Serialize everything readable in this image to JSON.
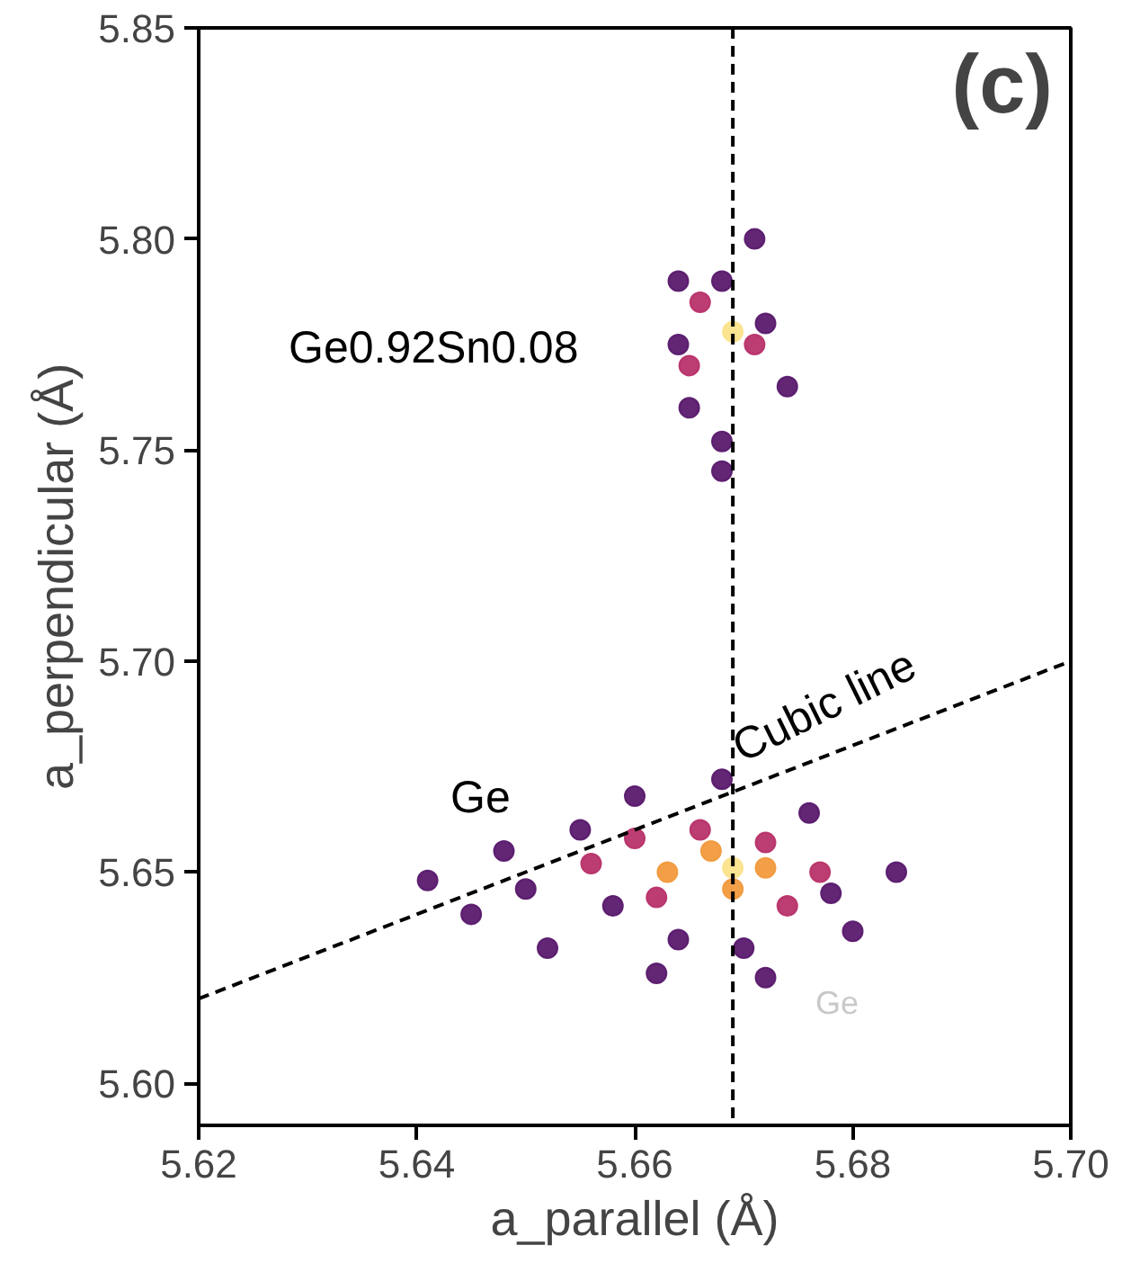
{
  "chart_data": {
    "type": "scatter",
    "xlabel": "a_parallel (Å)",
    "ylabel": "a_perpendicular (Å)",
    "xlim": [
      5.62,
      5.7
    ],
    "ylim": [
      5.59,
      5.85
    ],
    "xticks": [
      5.62,
      5.64,
      5.66,
      5.68,
      {
        "value": 5.7,
        "label": "5.70"
      }
    ],
    "yticks": [
      {
        "value": 5.6,
        "label": "5.60"
      },
      5.65,
      {
        "value": 5.7,
        "label": "5.70"
      },
      5.75,
      {
        "value": 5.8,
        "label": "5.80"
      },
      5.85
    ],
    "grid": false,
    "marker": "circle",
    "series": [
      {
        "color": "#5a1a6e",
        "x": [
          5.641,
          5.648,
          5.655,
          5.66,
          5.668,
          5.676,
          5.684,
          5.68,
          5.672,
          5.662,
          5.652,
          5.645,
          5.65,
          5.658,
          5.664,
          5.67,
          5.678,
          5.665,
          5.674,
          5.664,
          5.668,
          5.671,
          5.664,
          5.672,
          5.668,
          5.668
        ],
        "values": [
          5.648,
          5.655,
          5.66,
          5.668,
          5.672,
          5.664,
          5.65,
          5.636,
          5.625,
          5.626,
          5.632,
          5.64,
          5.646,
          5.642,
          5.634,
          5.632,
          5.645,
          5.76,
          5.765,
          5.775,
          5.79,
          5.8,
          5.79,
          5.78,
          5.752,
          5.745
        ]
      },
      {
        "color": "#b8336a",
        "x": [
          5.656,
          5.66,
          5.666,
          5.672,
          5.677,
          5.674,
          5.662,
          5.666,
          5.671,
          5.665
        ],
        "values": [
          5.652,
          5.658,
          5.66,
          5.657,
          5.65,
          5.642,
          5.644,
          5.785,
          5.775,
          5.77
        ]
      },
      {
        "color": "#f19a3e",
        "x": [
          5.663,
          5.667,
          5.672,
          5.669
        ],
        "values": [
          5.65,
          5.655,
          5.651,
          5.646
        ]
      },
      {
        "color": "#fbe38c",
        "x": [
          5.669,
          5.669
        ],
        "values": [
          5.651,
          5.778
        ]
      },
      {
        "type": "line",
        "color": "#000000",
        "line_style": "dashed",
        "marker": "none",
        "x": [
          5.62,
          5.7
        ],
        "values": [
          5.62,
          5.7
        ]
      }
    ],
    "ref_lines": [
      {
        "axis": "x",
        "value": 5.669,
        "color": "#000000",
        "line_style": "dashed"
      }
    ],
    "annotations": [
      "(c)",
      "Cubic line",
      "Ge",
      "Ge0.92Sn0.08",
      "Ge"
    ]
  }
}
